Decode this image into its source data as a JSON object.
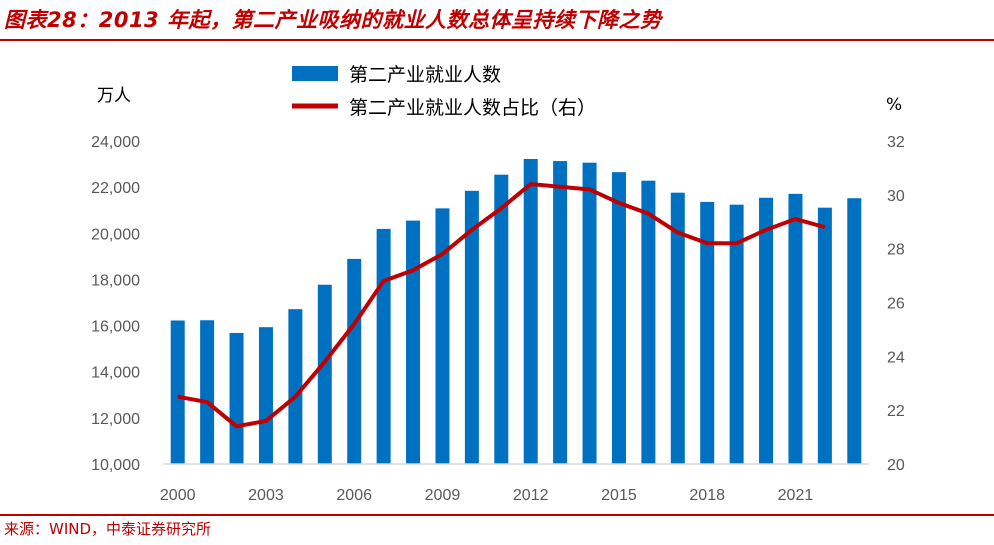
{
  "title": "图表28：2013 年起，第二产业吸纳的就业人数总体呈持续下降之势",
  "source": "来源：WIND，中泰证券研究所",
  "colors": {
    "accent": "#c00000",
    "bar": "#0070c0",
    "line": "#c00000"
  },
  "chart_data": {
    "type": "bar+line",
    "left_unit": "万人",
    "right_unit": "%",
    "x": [
      2000,
      2001,
      2002,
      2003,
      2004,
      2005,
      2006,
      2007,
      2008,
      2009,
      2010,
      2011,
      2012,
      2013,
      2014,
      2015,
      2016,
      2017,
      2018,
      2019,
      2020,
      2021,
      2022,
      2023
    ],
    "x_tick_labels": [
      "2000",
      "2003",
      "2006",
      "2009",
      "2012",
      "2015",
      "2018",
      "2021"
    ],
    "series": [
      {
        "name": "第二产业就业人数",
        "type": "bar",
        "axis": "left",
        "values": [
          16220,
          16230,
          15680,
          15930,
          16710,
          17770,
          18890,
          20190,
          20550,
          21080,
          21840,
          22540,
          23220,
          23130,
          23060,
          22650,
          22280,
          21760,
          21360,
          21240,
          21540,
          21710,
          21110,
          21520
        ]
      },
      {
        "name": "第二产业就业人数占比（右）",
        "type": "line",
        "axis": "right",
        "values": [
          22.5,
          22.3,
          21.4,
          21.6,
          22.5,
          23.8,
          25.2,
          26.8,
          27.2,
          27.8,
          28.7,
          29.5,
          30.4,
          30.3,
          30.2,
          29.7,
          29.3,
          28.6,
          28.2,
          28.2,
          28.7,
          29.1,
          28.8,
          null
        ]
      }
    ],
    "ylim_left": [
      10000,
      24000
    ],
    "yticks_left": [
      "24,000",
      "22,000",
      "20,000",
      "18,000",
      "16,000",
      "14,000",
      "12,000",
      "10,000"
    ],
    "ylim_right": [
      20,
      32
    ],
    "yticks_right": [
      "32",
      "30",
      "28",
      "26",
      "24",
      "22",
      "20"
    ],
    "legend": "top",
    "grid": false
  }
}
